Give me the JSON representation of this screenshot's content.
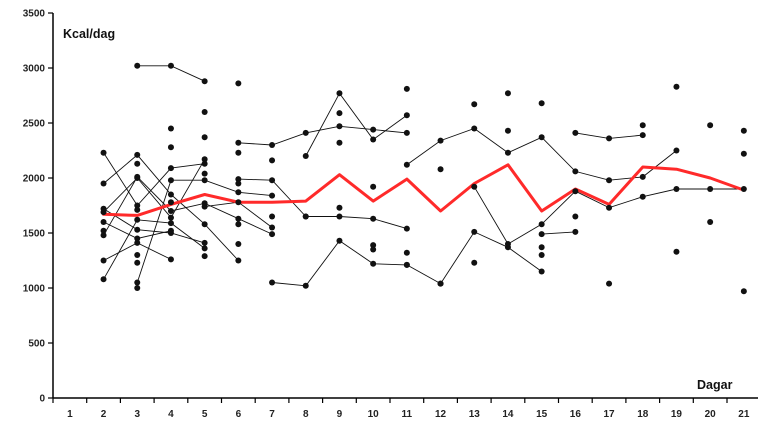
{
  "chart_data": {
    "type": "line",
    "title": "",
    "ylabel": "Kcal/dag",
    "xlabel": "Dagar",
    "ylim": [
      0,
      3500
    ],
    "yticks": [
      0,
      500,
      1000,
      1500,
      2000,
      2500,
      3000,
      3500
    ],
    "xlim": [
      0.5,
      21.5
    ],
    "xticks": [
      1,
      2,
      3,
      4,
      5,
      6,
      7,
      8,
      9,
      10,
      11,
      12,
      13,
      14,
      15,
      16,
      17,
      18,
      19,
      20,
      21
    ],
    "grid": false,
    "legend": "none",
    "colors": {
      "mean": "#ff2a2a",
      "individual": "#111111",
      "axis": "#000000"
    },
    "series": [
      {
        "style": "mean",
        "x": [
          2,
          3,
          4,
          5,
          6,
          7,
          8,
          9,
          10,
          11,
          12,
          13,
          14,
          15,
          16,
          17,
          18,
          19,
          20,
          21
        ],
        "values": [
          1670,
          1660,
          1760,
          1850,
          1780,
          1780,
          1790,
          2030,
          1790,
          1990,
          1700,
          1950,
          2120,
          1700,
          1900,
          1760,
          2100,
          2080,
          2000,
          1890
        ]
      },
      {
        "style": "individual",
        "x": [
          3,
          4,
          5
        ],
        "values": [
          3020,
          3020,
          2880
        ]
      },
      {
        "style": "individual",
        "x": [
          6,
          7,
          8,
          9,
          10,
          11
        ],
        "values": [
          2320,
          2300,
          2410,
          2470,
          2440,
          2410
        ]
      },
      {
        "style": "individual",
        "x": [
          8,
          9,
          10,
          11
        ],
        "values": [
          2200,
          2770,
          2350,
          2570
        ]
      },
      {
        "style": "individual",
        "x": [
          11,
          12,
          13,
          14,
          15,
          16,
          17,
          18,
          19
        ],
        "values": [
          2120,
          2340,
          2450,
          2230,
          2370,
          2060,
          1980,
          2010,
          2250
        ]
      },
      {
        "style": "individual",
        "x": [
          16,
          17,
          18
        ],
        "values": [
          2410,
          2360,
          2390
        ]
      },
      {
        "style": "individual",
        "x": [
          2,
          3,
          4,
          5
        ],
        "values": [
          2230,
          1750,
          2090,
          2130
        ]
      },
      {
        "style": "individual",
        "x": [
          2,
          3,
          4,
          5,
          6
        ],
        "values": [
          1950,
          2210,
          1850,
          1580,
          1250
        ]
      },
      {
        "style": "individual",
        "x": [
          2,
          3,
          4,
          5
        ],
        "values": [
          1690,
          2000,
          1640,
          2170
        ]
      },
      {
        "style": "individual",
        "x": [
          2,
          3,
          4,
          5,
          6,
          7
        ],
        "values": [
          1480,
          2010,
          1700,
          1770,
          1630,
          1490
        ]
      },
      {
        "style": "individual",
        "x": [
          2,
          3,
          4,
          5
        ],
        "values": [
          1720,
          1530,
          1500,
          1410
        ]
      },
      {
        "style": "individual",
        "x": [
          2,
          3,
          4,
          5
        ],
        "values": [
          1080,
          1620,
          1590,
          1360
        ]
      },
      {
        "style": "individual",
        "x": [
          2,
          3,
          4
        ],
        "values": [
          1250,
          1410,
          1260
        ]
      },
      {
        "style": "individual",
        "x": [
          2,
          3,
          4
        ],
        "values": [
          1600,
          1450,
          1520
        ]
      },
      {
        "style": "individual",
        "x": [
          3,
          4,
          5,
          6,
          7
        ],
        "values": [
          1050,
          1980,
          1980,
          1870,
          1840
        ]
      },
      {
        "style": "individual",
        "x": [
          5,
          6,
          7
        ],
        "values": [
          1740,
          1780,
          1550
        ]
      },
      {
        "style": "individual",
        "x": [
          6,
          7,
          8
        ],
        "values": [
          1990,
          1980,
          1650
        ]
      },
      {
        "style": "individual",
        "x": [
          7,
          8,
          9,
          10,
          11
        ],
        "values": [
          1050,
          1020,
          1430,
          1220,
          1210
        ]
      },
      {
        "style": "individual",
        "x": [
          8,
          9,
          10,
          11
        ],
        "values": [
          1650,
          1650,
          1630,
          1540
        ]
      },
      {
        "style": "individual",
        "x": [
          11,
          12
        ],
        "values": [
          1210,
          1040
        ]
      },
      {
        "style": "individual",
        "x": [
          12,
          13,
          14,
          15
        ],
        "values": [
          1040,
          1510,
          1370,
          1150
        ]
      },
      {
        "style": "individual",
        "x": [
          13,
          14,
          15,
          16,
          17,
          18,
          19,
          20,
          21
        ],
        "values": [
          1920,
          1400,
          1580,
          1880,
          1730,
          1830,
          1900,
          1900,
          1900
        ]
      },
      {
        "style": "individual",
        "x": [
          15,
          16
        ],
        "values": [
          1490,
          1510
        ]
      }
    ],
    "scatter_points": [
      [
        2,
        1520
      ],
      [
        3,
        1230
      ],
      [
        3,
        1000
      ],
      [
        3,
        1300
      ],
      [
        3,
        2130
      ],
      [
        3,
        1710
      ],
      [
        4,
        1780
      ],
      [
        4,
        2450
      ],
      [
        4,
        2280
      ],
      [
        5,
        1290
      ],
      [
        5,
        2040
      ],
      [
        5,
        2370
      ],
      [
        5,
        2600
      ],
      [
        6,
        2860
      ],
      [
        6,
        1950
      ],
      [
        6,
        1580
      ],
      [
        6,
        1400
      ],
      [
        6,
        2230
      ],
      [
        7,
        2160
      ],
      [
        7,
        1650
      ],
      [
        9,
        2590
      ],
      [
        9,
        2320
      ],
      [
        9,
        1730
      ],
      [
        10,
        1920
      ],
      [
        10,
        1390
      ],
      [
        10,
        1350
      ],
      [
        11,
        2810
      ],
      [
        11,
        1320
      ],
      [
        12,
        2080
      ],
      [
        13,
        2670
      ],
      [
        13,
        1230
      ],
      [
        14,
        2770
      ],
      [
        14,
        2430
      ],
      [
        15,
        2680
      ],
      [
        15,
        1370
      ],
      [
        15,
        1300
      ],
      [
        16,
        1650
      ],
      [
        17,
        1040
      ],
      [
        18,
        2480
      ],
      [
        19,
        2830
      ],
      [
        19,
        1330
      ],
      [
        20,
        2480
      ],
      [
        20,
        1600
      ],
      [
        21,
        2430
      ],
      [
        21,
        2220
      ],
      [
        21,
        970
      ]
    ]
  }
}
